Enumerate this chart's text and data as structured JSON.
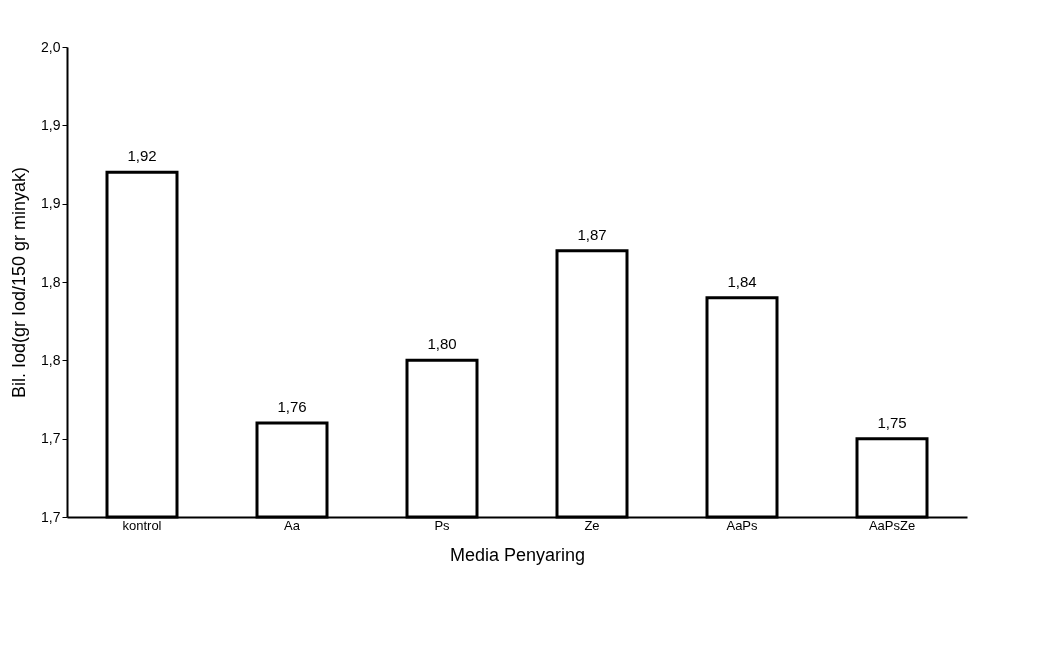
{
  "chart_data": {
    "type": "bar",
    "xlabel": "Media Penyaring",
    "ylabel": "Bil. Iod(gr Iod/150 gr minyak)",
    "categories": [
      "kontrol",
      "Aa",
      "Ps",
      "Ze",
      "AaPs",
      "AaPsZe"
    ],
    "values": [
      1.92,
      1.76,
      1.8,
      1.87,
      1.84,
      1.75
    ],
    "value_labels": [
      "1,92",
      "1,76",
      "1,80",
      "1,87",
      "1,84",
      "1,75"
    ],
    "color": "#ffffff",
    "ylim": [
      1.7,
      2.0
    ],
    "yticks": [
      {
        "value": 1.7,
        "label": "1,7"
      },
      {
        "value": 1.75,
        "label": "1,7"
      },
      {
        "value": 1.8,
        "label": "1,8"
      },
      {
        "value": 1.85,
        "label": "1,8"
      },
      {
        "value": 1.9,
        "label": "1,9"
      },
      {
        "value": 1.95,
        "label": "1,9"
      },
      {
        "value": 2.0,
        "label": "2,0"
      }
    ],
    "grid": false
  }
}
